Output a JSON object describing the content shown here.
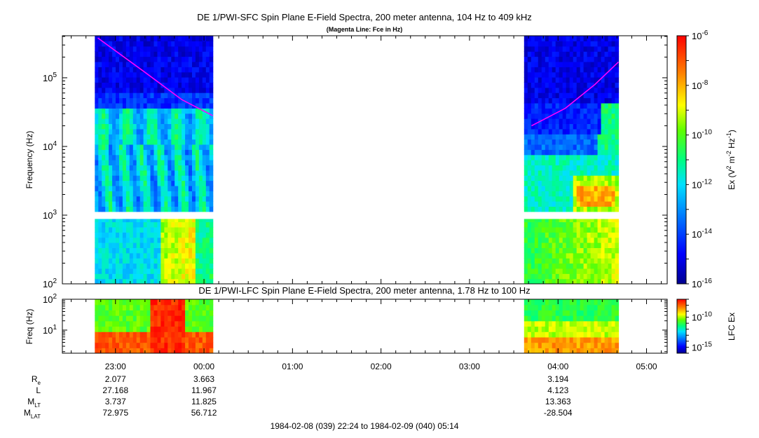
{
  "chart_data": [
    {
      "type": "heatmap",
      "title": "DE 1/PWI-SFC  Spin Plane E-Field Spectra, 200 meter antenna, 104 Hz to 409 kHz",
      "subtitle": "(Magenta Line: Fce in Hz)",
      "ylabel": "Frequency (Hz)",
      "yscale": "log",
      "ylim": [
        100,
        409000
      ],
      "yticks": [
        {
          "value": 100,
          "base": "10",
          "exp": "2"
        },
        {
          "value": 1000,
          "base": "10",
          "exp": "3"
        },
        {
          "value": 10000,
          "base": "10",
          "exp": "4"
        },
        {
          "value": 100000,
          "base": "10",
          "exp": "5"
        }
      ],
      "colorbar": {
        "label_parts": [
          "Ex (V",
          "2",
          " m",
          "-2",
          " Hz",
          "-1",
          ")"
        ],
        "scale": "log",
        "range": [
          1e-16,
          1e-06
        ],
        "ticks": [
          {
            "value": 1e-06,
            "base": "10",
            "exp": "-6"
          },
          {
            "value": 1e-08,
            "base": "10",
            "exp": "-8"
          },
          {
            "value": 1e-10,
            "base": "10",
            "exp": "-10"
          },
          {
            "value": 1e-12,
            "base": "10",
            "exp": "-12"
          },
          {
            "value": 1e-14,
            "base": "10",
            "exp": "-14"
          },
          {
            "value": 1e-16,
            "base": "10",
            "exp": "-16"
          }
        ]
      },
      "data_intervals": [
        {
          "start": "1984-02-08 22:46",
          "end": "1984-02-09 00:06"
        },
        {
          "start": "1984-02-09 03:37",
          "end": "1984-02-09 04:41"
        }
      ],
      "fce_series": [
        {
          "name": "Fce",
          "points": [
            [
              "1984-02-08 22:48",
              380000
            ],
            [
              "1984-02-08 23:20",
              120000
            ],
            [
              "1984-02-08 23:45",
              48000
            ],
            [
              "1984-02-09 00:06",
              28000
            ]
          ]
        },
        {
          "name": "Fce",
          "points": [
            [
              "1984-02-09 03:42",
              20000
            ],
            [
              "1984-02-09 04:05",
              36000
            ],
            [
              "1984-02-09 04:25",
              80000
            ],
            [
              "1984-02-09 04:41",
              170000
            ]
          ]
        }
      ]
    },
    {
      "type": "heatmap",
      "title": "DE 1/PWI-LFC  Spin Plane E-Field Spectra, 200 meter antenna, 1.78 Hz to 100 Hz",
      "ylabel": "Freq (Hz)",
      "yscale": "log",
      "ylim": [
        1.78,
        100
      ],
      "yticks": [
        {
          "value": 10,
          "base": "10",
          "exp": "1"
        },
        {
          "value": 100,
          "base": "10",
          "exp": "2"
        }
      ],
      "colorbar": {
        "label": "LFC Ex",
        "scale": "log",
        "range": [
          1e-16,
          1e-07
        ],
        "ticks": [
          {
            "value": 1e-10,
            "base": "10",
            "exp": "-10"
          },
          {
            "value": 1e-15,
            "base": "10",
            "exp": "-15"
          }
        ]
      },
      "data_intervals": [
        {
          "start": "1984-02-08 22:46",
          "end": "1984-02-09 00:06"
        },
        {
          "start": "1984-02-09 03:37",
          "end": "1984-02-09 04:41"
        }
      ]
    }
  ],
  "time_axis": {
    "range": [
      "1984-02-08 22:24",
      "1984-02-09 05:14"
    ],
    "ticks": [
      {
        "time": "1984-02-08 23:00",
        "label": "23:00"
      },
      {
        "time": "1984-02-09 00:00",
        "label": "00:00"
      },
      {
        "time": "1984-02-09 01:00",
        "label": "01:00"
      },
      {
        "time": "1984-02-09 02:00",
        "label": "02:00"
      },
      {
        "time": "1984-02-09 03:00",
        "label": "03:00"
      },
      {
        "time": "1984-02-09 04:00",
        "label": "04:00"
      },
      {
        "time": "1984-02-09 05:00",
        "label": "05:00"
      }
    ],
    "range_label": "1984-02-08 (039) 22:24 to 1984-02-09 (040) 05:14"
  },
  "ephemeris": {
    "rows": [
      {
        "label": "R",
        "sub": "e",
        "values": [
          "2.077",
          "3.663",
          "",
          "",
          "",
          "3.194",
          ""
        ]
      },
      {
        "label": "L",
        "sub": "",
        "values": [
          "27.168",
          "11.967",
          "",
          "",
          "",
          "4.123",
          ""
        ]
      },
      {
        "label": "M",
        "sub": "LT",
        "values": [
          "3.737",
          "11.825",
          "",
          "",
          "",
          "13.363",
          ""
        ]
      },
      {
        "label": "M",
        "sub": "LAT",
        "values": [
          "72.975",
          "56.712",
          "",
          "",
          "",
          "-28.504",
          ""
        ]
      }
    ]
  },
  "colors": {
    "fce_line": "#ff00ff",
    "axis": "#000000"
  }
}
